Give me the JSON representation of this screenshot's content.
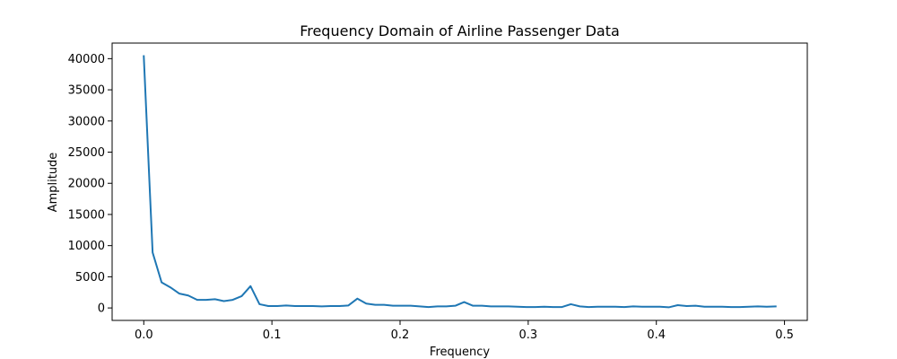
{
  "chart_data": {
    "type": "line",
    "title": "Frequency Domain of Airline Passenger Data",
    "xlabel": "Frequency",
    "ylabel": "Amplitude",
    "xlim": [
      -0.0247,
      0.5178
    ],
    "ylim": [
      -2000,
      42500
    ],
    "xticks": [
      0.0,
      0.1,
      0.2,
      0.3,
      0.4,
      0.5
    ],
    "xtick_labels": [
      "0.0",
      "0.1",
      "0.2",
      "0.3",
      "0.4",
      "0.5"
    ],
    "yticks": [
      0,
      5000,
      10000,
      15000,
      20000,
      25000,
      30000,
      35000,
      40000
    ],
    "ytick_labels": [
      "0",
      "5000",
      "10000",
      "15000",
      "20000",
      "25000",
      "30000",
      "35000",
      "40000"
    ],
    "grid": false,
    "colors": {
      "line": "#1f77b4"
    },
    "series": [
      {
        "x": [
          0.0,
          0.0069,
          0.0139,
          0.0208,
          0.0278,
          0.0347,
          0.0417,
          0.0486,
          0.0556,
          0.0625,
          0.0694,
          0.0764,
          0.0833,
          0.0903,
          0.0972,
          0.1042,
          0.1111,
          0.1181,
          0.125,
          0.1319,
          0.1389,
          0.1458,
          0.1528,
          0.1597,
          0.1667,
          0.1736,
          0.1806,
          0.1875,
          0.1944,
          0.2014,
          0.2083,
          0.2153,
          0.2222,
          0.2292,
          0.2361,
          0.2431,
          0.25,
          0.2569,
          0.2639,
          0.2708,
          0.2778,
          0.2847,
          0.2917,
          0.2986,
          0.3056,
          0.3125,
          0.3194,
          0.3264,
          0.3333,
          0.3403,
          0.3472,
          0.3542,
          0.3611,
          0.3681,
          0.375,
          0.3819,
          0.3889,
          0.3958,
          0.4028,
          0.4097,
          0.4167,
          0.4236,
          0.4306,
          0.4375,
          0.4444,
          0.4514,
          0.4583,
          0.4653,
          0.4722,
          0.4792,
          0.4861,
          0.4931
        ],
        "values": [
          40400,
          8900,
          4100,
          3300,
          2300,
          2000,
          1300,
          1300,
          1400,
          1100,
          1300,
          1900,
          3500,
          600,
          300,
          300,
          400,
          300,
          300,
          300,
          250,
          300,
          300,
          400,
          1500,
          700,
          500,
          500,
          350,
          350,
          350,
          250,
          150,
          250,
          250,
          350,
          950,
          350,
          350,
          250,
          250,
          250,
          200,
          150,
          150,
          200,
          150,
          150,
          600,
          250,
          150,
          200,
          200,
          200,
          150,
          250,
          200,
          200,
          200,
          100,
          450,
          300,
          350,
          200,
          200,
          200,
          150,
          150,
          200,
          250,
          200,
          250
        ]
      }
    ]
  }
}
